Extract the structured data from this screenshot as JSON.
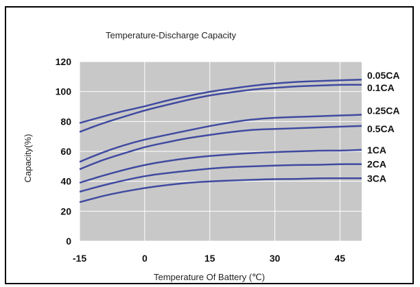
{
  "chart_data": {
    "type": "line",
    "title": "Temperature-Discharge Capacity",
    "xlabel": "Temperature Of Battery (℃)",
    "ylabel": "Capacity(%)",
    "xlim": [
      -15,
      50
    ],
    "ylim": [
      0,
      120
    ],
    "xticks": [
      "-15",
      "0",
      "15",
      "30",
      "45"
    ],
    "yticks": [
      "0",
      "20",
      "40",
      "60",
      "80",
      "100",
      "120"
    ],
    "grid": true,
    "colors": {
      "plot_bg": "#c8c8c8",
      "line": "#3f4aa0",
      "grid": "#ffffff"
    },
    "x": [
      -15,
      -10,
      -5,
      0,
      5,
      10,
      15,
      20,
      25,
      30,
      35,
      40,
      45,
      50
    ],
    "series": [
      {
        "name": "0.05CA",
        "values": [
          79,
          83,
          87,
          90,
          94,
          97,
          100,
          102,
          104,
          105.5,
          106.5,
          107,
          107.5,
          108
        ]
      },
      {
        "name": "0.1CA",
        "values": [
          73,
          78.5,
          83,
          87.5,
          91,
          94.5,
          97.5,
          99.5,
          101.5,
          102.5,
          103.5,
          104,
          104.5,
          104.5
        ]
      },
      {
        "name": "0.25CA",
        "values": [
          53,
          59,
          64,
          68,
          71,
          74,
          77,
          79.5,
          81.5,
          82.5,
          83,
          83.5,
          84,
          84.5
        ]
      },
      {
        "name": "0.5CA",
        "values": [
          48,
          54,
          58.5,
          63,
          66,
          69,
          71,
          73,
          74.5,
          75,
          75.5,
          76,
          76.5,
          77
        ]
      },
      {
        "name": "1CA",
        "values": [
          39,
          43.5,
          47.5,
          51,
          53.5,
          55.5,
          57,
          58,
          59,
          59.5,
          60,
          60.5,
          60.5,
          61
        ]
      },
      {
        "name": "2CA",
        "values": [
          33,
          37,
          40.5,
          43.5,
          45.5,
          47,
          48.5,
          49.5,
          50,
          50.5,
          51,
          51,
          51.5,
          51.5
        ]
      },
      {
        "name": "3CA",
        "values": [
          26,
          30,
          33,
          35.5,
          37.5,
          39,
          40,
          40.5,
          41,
          41.5,
          41.5,
          42,
          42,
          42
        ]
      }
    ]
  }
}
